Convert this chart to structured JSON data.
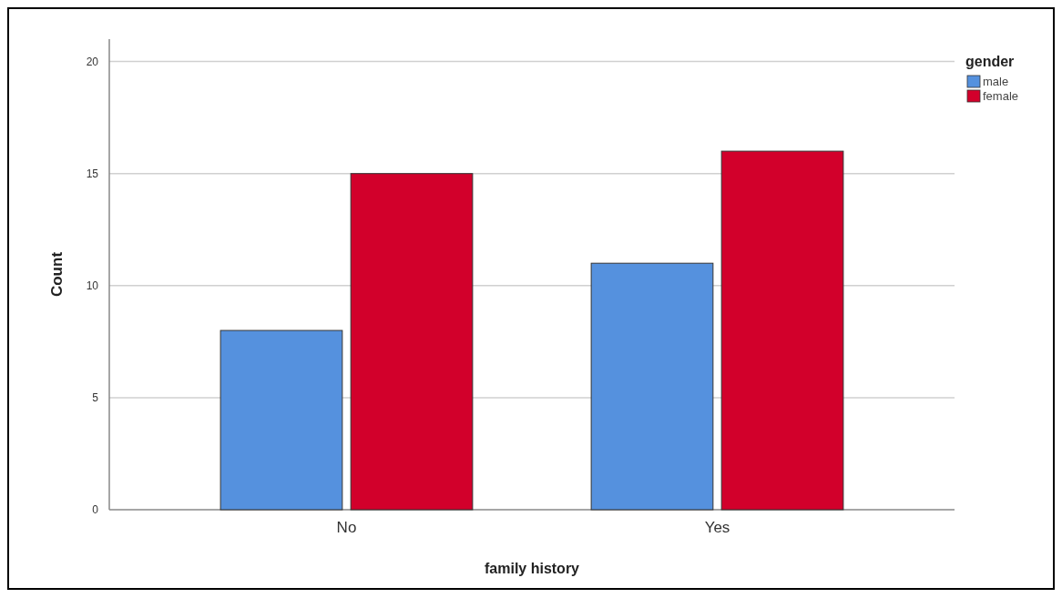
{
  "chart_data": {
    "type": "bar",
    "xlabel": "family history",
    "ylabel": "Count",
    "legend_title": "gender",
    "categories": [
      "No",
      "Yes"
    ],
    "series": [
      {
        "name": "male",
        "color": "#5591de",
        "values": [
          8,
          11
        ]
      },
      {
        "name": "female",
        "color": "#d2002b",
        "values": [
          15,
          16
        ]
      }
    ],
    "ylim": [
      0,
      21
    ],
    "yticks": [
      0,
      5,
      10,
      15,
      20
    ],
    "grid": "y",
    "legend": "top right"
  }
}
